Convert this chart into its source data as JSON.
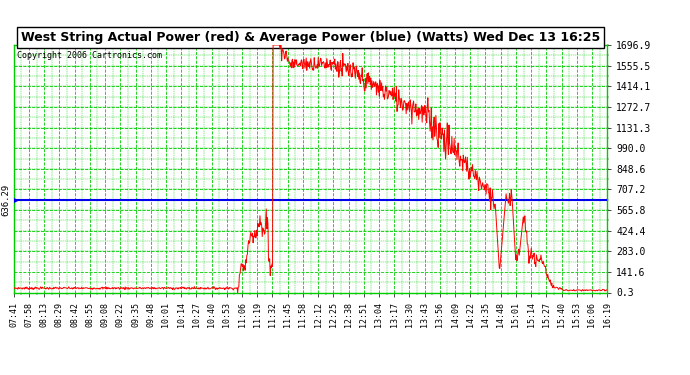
{
  "title": "West String Actual Power (red) & Average Power (blue) (Watts) Wed Dec 13 16:25",
  "copyright": "Copyright 2006 Cartronics.com",
  "plot_bg_color": "#ffffff",
  "grid_color": "#00cc00",
  "average_value": 636.29,
  "avg_label": "636.29",
  "avg_line_color": "#0000ee",
  "actual_line_color": "#ff0000",
  "y_tick_labels": [
    "1696.9",
    "1555.5",
    "1414.1",
    "1272.7",
    "1131.3",
    "990.0",
    "848.6",
    "707.2",
    "565.8",
    "424.4",
    "283.0",
    "141.6",
    "0.3"
  ],
  "y_max": 1696.9,
  "y_min": 0.3,
  "x_labels": [
    "07:41",
    "07:58",
    "08:13",
    "08:29",
    "08:42",
    "08:55",
    "09:08",
    "09:22",
    "09:35",
    "09:48",
    "10:01",
    "10:14",
    "10:27",
    "10:40",
    "10:53",
    "11:06",
    "11:19",
    "11:32",
    "11:45",
    "11:58",
    "12:12",
    "12:25",
    "12:38",
    "12:51",
    "13:04",
    "13:17",
    "13:30",
    "13:43",
    "13:56",
    "14:09",
    "14:22",
    "14:35",
    "14:48",
    "15:01",
    "15:14",
    "15:27",
    "15:40",
    "15:53",
    "16:06",
    "16:19"
  ],
  "total_minutes": 518,
  "figsize": [
    6.9,
    3.75
  ],
  "dpi": 100
}
